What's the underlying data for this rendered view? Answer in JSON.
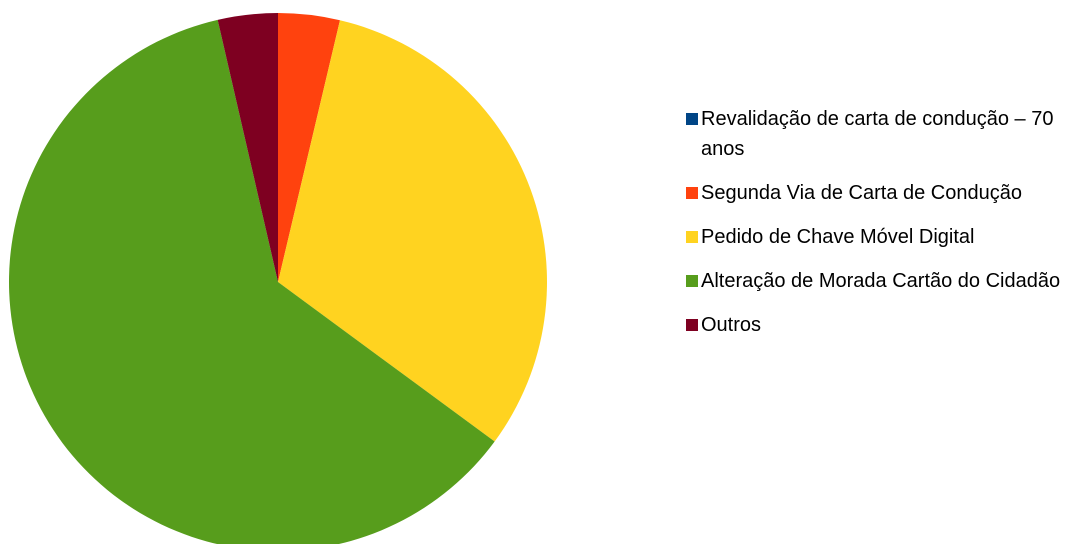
{
  "chart_data": {
    "type": "pie",
    "categories": [
      "Revalidação de carta de condução – 70 anos",
      "Segunda Via de Carta de Condução",
      "Pedido de Chave Móvel Digital",
      "Alteração de Morada Cartão do Cidadão",
      "Outros"
    ],
    "values": [
      0,
      3.7,
      31.4,
      61.3,
      3.6
    ],
    "colors": [
      "#004586",
      "#ff420e",
      "#ffd320",
      "#579d1c",
      "#7e0021"
    ],
    "legend": "right"
  }
}
